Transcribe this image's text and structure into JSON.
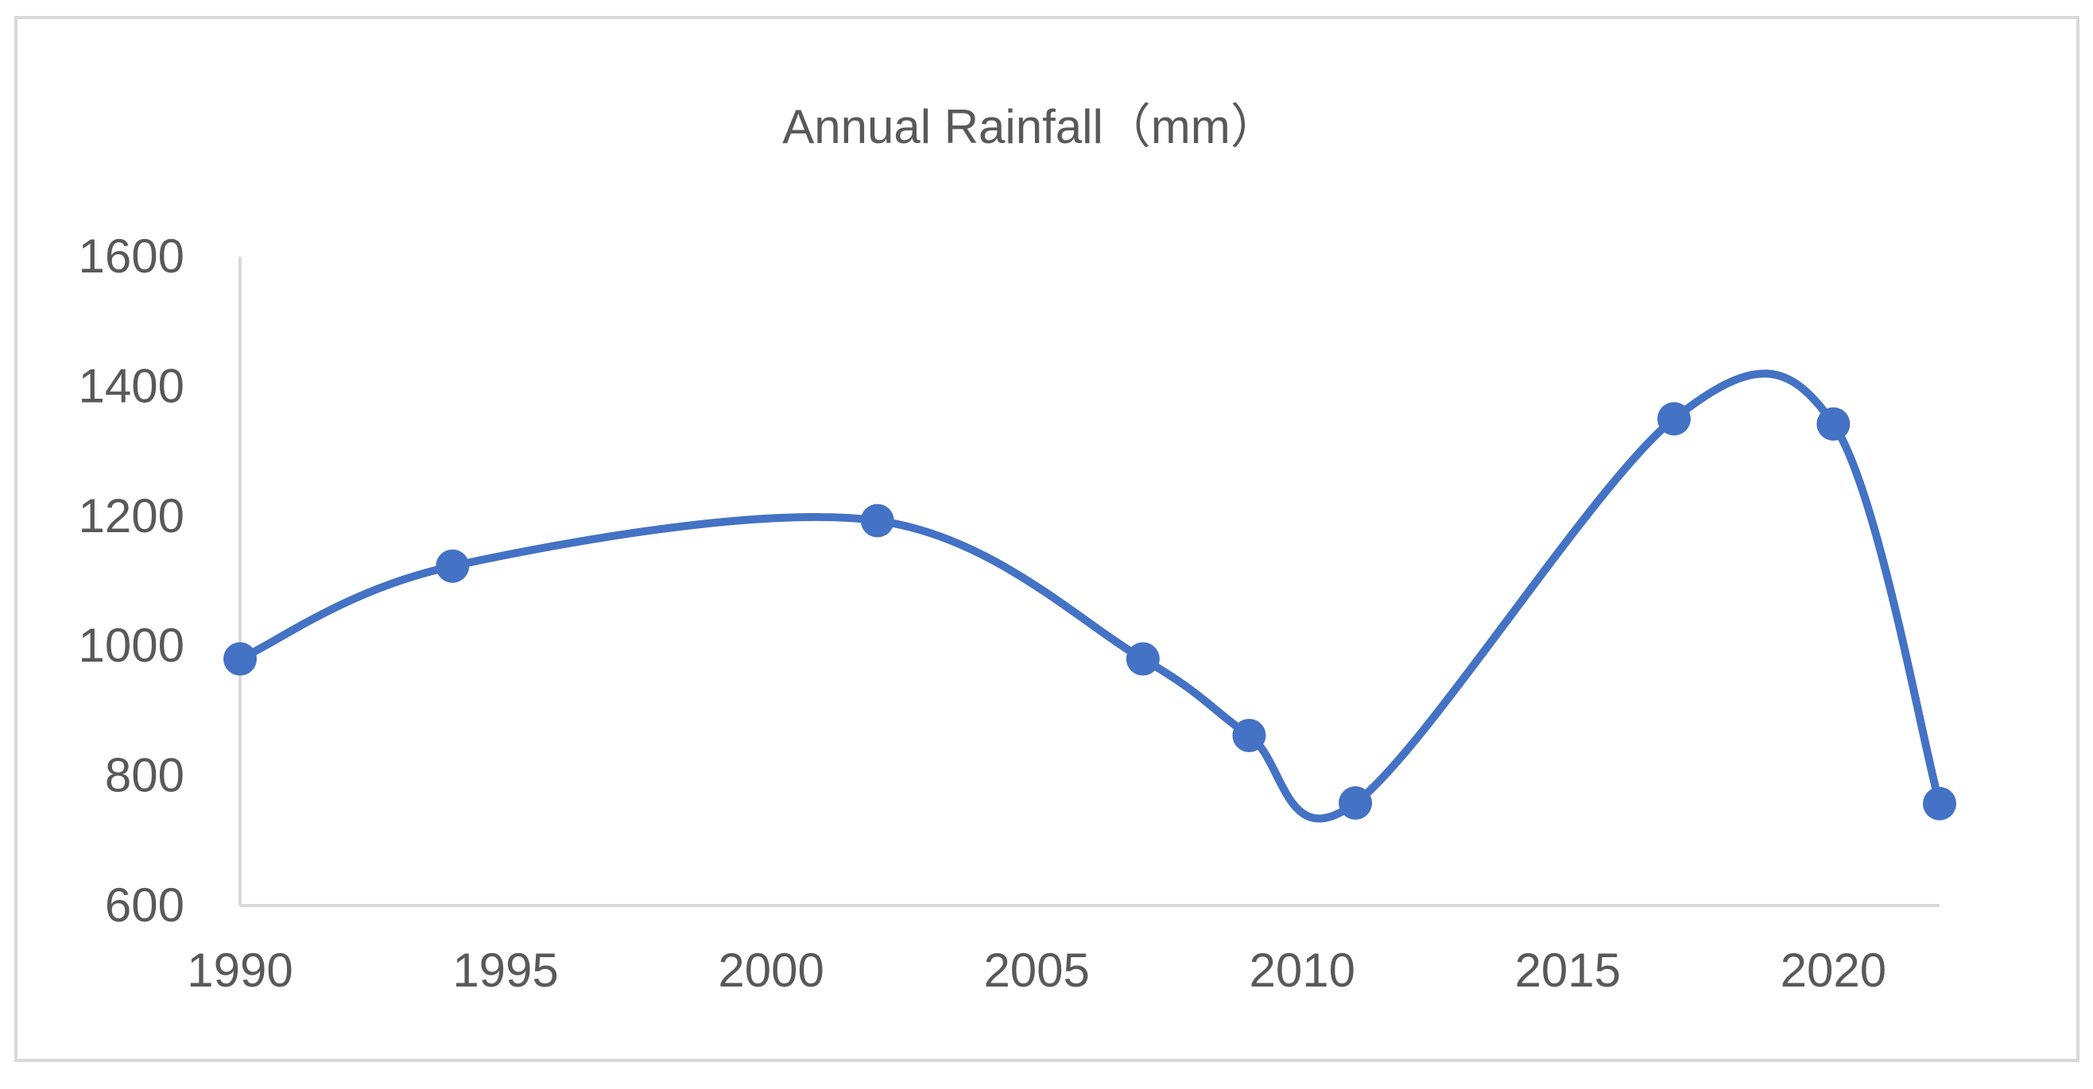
{
  "chart_data": {
    "type": "line",
    "smooth": true,
    "title": "Annual Rainfall（mm）",
    "xlabel": "",
    "ylabel": "",
    "x": [
      1990,
      1994,
      2002,
      2007,
      2009,
      2011,
      2017,
      2020,
      2022
    ],
    "series": [
      {
        "name": "Annual Rainfall",
        "values": [
          980,
          1123,
          1193,
          980,
          862,
          758,
          1350,
          1342,
          757
        ]
      }
    ],
    "xlim": [
      1990,
      2022
    ],
    "ylim": [
      600,
      1600
    ],
    "xticks": [
      "1990",
      "1995",
      "2000",
      "2005",
      "2010",
      "2015",
      "2020"
    ],
    "yticks": [
      "600",
      "800",
      "1000",
      "1200",
      "1400",
      "1600"
    ],
    "grid": false,
    "legend": "none",
    "colors": {
      "series": "#4472C4",
      "axis": "#D9D9D9",
      "text": "#595959",
      "border": "#D9D9D9"
    }
  }
}
